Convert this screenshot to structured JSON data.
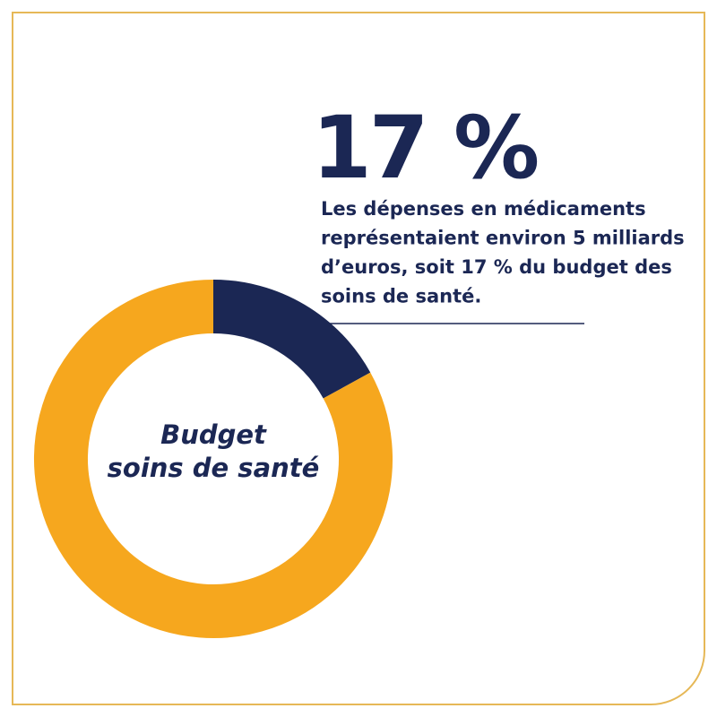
{
  "chart_data": {
    "type": "donut",
    "values": [
      17,
      83
    ],
    "value_labels": [
      "17 %",
      null
    ],
    "colors": [
      "#1b2754",
      "#f6a71e"
    ],
    "center_label": [
      "Budget",
      "soins de santé"
    ],
    "description": [
      "Les dépenses en médicaments",
      "représentaient environ 5 milliards",
      "d’euros, soit 17 % du budget des",
      "soins de santé."
    ]
  }
}
